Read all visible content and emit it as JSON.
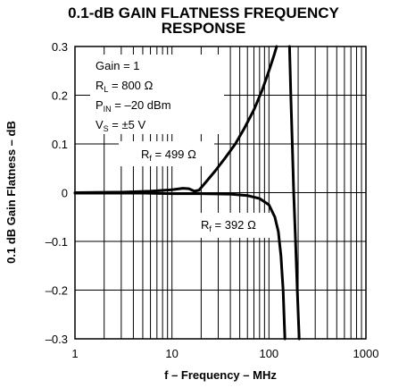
{
  "chart_data": {
    "type": "line",
    "title_line1": "0.1-dB GAIN FLATNESS FREQUENCY",
    "title_line2": "RESPONSE",
    "xlabel": "f – Frequency – MHz",
    "ylabel": "0.1 dB Gain Flatness – dB",
    "x_scale": "log",
    "xlim": [
      1,
      1000
    ],
    "ylim": [
      -0.3,
      0.3
    ],
    "x_ticks": [
      {
        "value": 1,
        "label": "1"
      },
      {
        "value": 10,
        "label": "10"
      },
      {
        "value": 100,
        "label": "100"
      },
      {
        "value": 1000,
        "label": "1000"
      }
    ],
    "y_ticks": [
      {
        "value": 0.3,
        "label": "0.3"
      },
      {
        "value": 0.2,
        "label": "0.2"
      },
      {
        "value": 0.1,
        "label": "0.1"
      },
      {
        "value": 0,
        "label": "0"
      },
      {
        "value": -0.1,
        "label": "–0.1"
      },
      {
        "value": -0.2,
        "label": "–0.2"
      },
      {
        "value": -0.3,
        "label": "–0.3"
      }
    ],
    "grid": true,
    "conditions": {
      "gain": {
        "main": "Gain = 1"
      },
      "rl": {
        "main": "R",
        "sub": "L",
        "rest": " = 800 Ω"
      },
      "pin": {
        "main": "P",
        "sub": "IN",
        "rest": " = –20 dBm"
      },
      "vs": {
        "main": "V",
        "sub": "S",
        "rest": " = ±5 V"
      }
    },
    "series": [
      {
        "label_main": "R",
        "label_sub": "f",
        "label_rest": " = 499 Ω",
        "color": "#000000",
        "points": [
          [
            1,
            0
          ],
          [
            3,
            0.001
          ],
          [
            6,
            0.003
          ],
          [
            10,
            0.006
          ],
          [
            13,
            0.009
          ],
          [
            15,
            0.008
          ],
          [
            17,
            0.003
          ],
          [
            19,
            0.005
          ],
          [
            22,
            0.02
          ],
          [
            28,
            0.045
          ],
          [
            35,
            0.07
          ],
          [
            45,
            0.1
          ],
          [
            55,
            0.13
          ],
          [
            70,
            0.17
          ],
          [
            85,
            0.21
          ],
          [
            100,
            0.25
          ],
          [
            112,
            0.28
          ],
          [
            120,
            0.3
          ]
        ]
      },
      {
        "label_main": "R",
        "label_sub": "f",
        "label_rest": " = 392 Ω",
        "color": "#000000",
        "points": [
          [
            1,
            -0.001
          ],
          [
            5,
            -0.001
          ],
          [
            10,
            -0.002
          ],
          [
            20,
            -0.002
          ],
          [
            40,
            -0.003
          ],
          [
            60,
            -0.006
          ],
          [
            80,
            -0.012
          ],
          [
            100,
            -0.025
          ],
          [
            115,
            -0.05
          ],
          [
            125,
            -0.08
          ],
          [
            133,
            -0.13
          ],
          [
            140,
            -0.2
          ],
          [
            146,
            -0.3
          ]
        ]
      },
      {
        "label_main": "",
        "label_sub": "",
        "label_rest": "",
        "color": "#000000",
        "points": [
          [
            163,
            0.3
          ],
          [
            168,
            0.2
          ],
          [
            174,
            0.1
          ],
          [
            180,
            0
          ],
          [
            188,
            -0.1
          ],
          [
            196,
            -0.2
          ],
          [
            205,
            -0.3
          ]
        ]
      }
    ]
  }
}
